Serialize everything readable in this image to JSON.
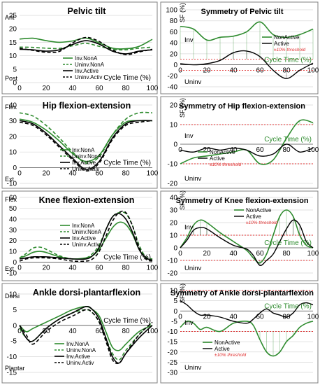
{
  "colors": {
    "green": "#2e8b2e",
    "black": "#000000",
    "red": "#e03030",
    "grid": "#d9d9d9",
    "panel_border": "#7f7f7f",
    "cycle": "#2e8b2e"
  },
  "chart_data": [
    {
      "type": "line",
      "title": "Pelvic tilt",
      "ylim": [
        0,
        25
      ],
      "yticks": [
        0,
        5,
        10,
        15,
        20,
        25
      ],
      "xticks": [
        0,
        20,
        40,
        60,
        80,
        100
      ],
      "xlabel": "Cycle Time (%)",
      "top_label": "Ant",
      "bottom_label": "Post",
      "x": [
        0,
        10,
        20,
        30,
        40,
        50,
        60,
        70,
        80,
        90,
        100
      ],
      "series": [
        {
          "name": "Inv.NonA",
          "values": [
            16.2,
            16.5,
            15.6,
            15.0,
            15.5,
            16.6,
            14.8,
            12.8,
            12.6,
            13.5,
            16.1
          ]
        },
        {
          "name": "Uninv.NonA",
          "values": [
            13.2,
            13.1,
            12.8,
            12.7,
            13.7,
            14.6,
            13.5,
            12.4,
            12.2,
            12.8,
            13.2
          ]
        },
        {
          "name": "Inv.Active",
          "values": [
            12.4,
            12.2,
            11.7,
            12.2,
            14.2,
            15.6,
            14.3,
            11.7,
            10.7,
            11.7,
            12.2
          ]
        },
        {
          "name": "Uninv.Activ",
          "values": [
            12.8,
            12.0,
            11.3,
            11.6,
            14.8,
            16.8,
            15.3,
            12.2,
            10.4,
            11.4,
            12.4
          ]
        }
      ]
    },
    {
      "type": "line",
      "title": "Hip flexion-extension",
      "ylim": [
        -10,
        40
      ],
      "yticks": [
        -10,
        0,
        10,
        20,
        30,
        40
      ],
      "xticks": [
        0,
        20,
        40,
        60,
        80,
        100
      ],
      "xlabel": "Cycle Time (%)",
      "top_label": "Flex",
      "bottom_label": "Ext",
      "x": [
        0,
        10,
        20,
        30,
        40,
        50,
        60,
        70,
        80,
        90,
        100
      ],
      "series": [
        {
          "name": "Inv.NonA",
          "values": [
            31,
            29,
            24,
            17,
            9,
            4,
            8,
            21,
            29,
            30,
            30
          ]
        },
        {
          "name": "Uninv.NonA",
          "values": [
            35,
            33,
            27,
            19,
            10,
            3,
            7,
            21,
            31,
            35,
            35
          ]
        },
        {
          "name": "Inv.Active",
          "values": [
            30,
            28,
            22,
            14,
            6,
            -1,
            4,
            19,
            28,
            30,
            30
          ]
        },
        {
          "name": "Uninv.Activ",
          "values": [
            29,
            27,
            21,
            13,
            5,
            -2,
            3,
            18,
            27,
            29,
            30
          ]
        }
      ]
    },
    {
      "type": "line",
      "title": "Knee flexion-extension",
      "ylim": [
        -10,
        60
      ],
      "yticks": [
        -10,
        0,
        10,
        20,
        30,
        40,
        50,
        60
      ],
      "xticks": [
        0,
        20,
        40,
        60,
        80,
        100
      ],
      "xlabel": "Cycle Time (%)",
      "top_label": "Flex",
      "bottom_label": "Ext",
      "x": [
        0,
        5,
        10,
        15,
        20,
        30,
        40,
        50,
        55,
        60,
        65,
        70,
        75,
        80,
        85,
        90,
        95,
        100
      ],
      "series": [
        {
          "name": "Inv.NonA",
          "values": [
            4,
            6,
            9,
            10,
            9,
            5,
            3,
            4,
            6,
            12,
            22,
            32,
            37,
            35,
            26,
            12,
            4,
            2
          ]
        },
        {
          "name": "Uninv.NonA",
          "values": [
            4,
            8,
            13,
            14,
            12,
            6,
            3,
            4,
            8,
            16,
            30,
            42,
            46,
            45,
            34,
            16,
            5,
            3
          ]
        },
        {
          "name": "Inv.Active",
          "values": [
            3,
            4,
            5,
            5,
            5,
            4,
            3,
            3,
            6,
            14,
            30,
            42,
            45,
            40,
            28,
            12,
            4,
            2
          ]
        },
        {
          "name": "Uninv.Activ",
          "values": [
            1,
            3,
            4,
            4,
            4,
            3,
            1,
            1,
            3,
            10,
            24,
            38,
            46,
            46,
            34,
            14,
            3,
            1
          ]
        }
      ]
    },
    {
      "type": "line",
      "title": "Ankle dorsi-plantarflexion",
      "ylim": [
        -15,
        10
      ],
      "yticks": [
        -15,
        -10,
        -5,
        0,
        5,
        10
      ],
      "xticks": [
        0,
        20,
        40,
        60,
        80,
        100
      ],
      "xlabel": "Cycle Time (%)",
      "top_label": "Dorsi",
      "bottom_label": "Plantar",
      "x": [
        0,
        5,
        10,
        20,
        30,
        40,
        50,
        55,
        60,
        65,
        70,
        75,
        80,
        90,
        100
      ],
      "series": [
        {
          "name": "Inv.NonA",
          "values": [
            0,
            -2,
            -1,
            1,
            3,
            5,
            6,
            5,
            3,
            -2,
            -7,
            -8,
            -6,
            -2,
            0
          ]
        },
        {
          "name": "Uninv.NonA",
          "values": [
            -1,
            -4,
            -5,
            -1,
            2,
            4,
            5,
            4,
            1,
            -4,
            -9,
            -11,
            -8,
            -3,
            1
          ]
        },
        {
          "name": "Inv.Active",
          "values": [
            0,
            -4,
            -5,
            -1,
            2,
            4,
            6,
            5,
            2,
            -4,
            -10,
            -12,
            -9,
            -4,
            0
          ]
        },
        {
          "name": "Uninv.Activ",
          "values": [
            0,
            -3,
            -6,
            -2,
            1,
            3,
            5,
            4,
            1,
            -5,
            -11,
            -12,
            -9,
            -3,
            1
          ]
        }
      ]
    },
    {
      "type": "line",
      "title": "Symmetry of Pelvic tilt",
      "ylim": [
        -40,
        100
      ],
      "yticks": [
        -40,
        -20,
        0,
        20,
        40,
        60,
        80,
        100
      ],
      "xticks": [
        0,
        20,
        40,
        60,
        80,
        100
      ],
      "xlabel": "Cycle Time (%)",
      "ylabel": "SF (%)",
      "top_label": "Inv",
      "bottom_label": "Uninv",
      "threshold": [
        -10,
        10
      ],
      "threshold_label": "±10% threshold",
      "x": [
        0,
        10,
        20,
        30,
        40,
        50,
        60,
        70,
        80,
        90,
        100
      ],
      "series": [
        {
          "name": "NonActive",
          "values": [
            70,
            65,
            45,
            50,
            52,
            60,
            78,
            55,
            50,
            55,
            65
          ]
        },
        {
          "name": "Active",
          "values": [
            2,
            0,
            2,
            8,
            22,
            25,
            15,
            -10,
            -25,
            -10,
            3
          ]
        }
      ]
    },
    {
      "type": "line",
      "title": "Symmetry of Hip flexion-extension",
      "ylim": [
        -20,
        20
      ],
      "yticks": [
        -20,
        -10,
        0,
        10,
        20
      ],
      "xticks": [
        0,
        20,
        40,
        60,
        80,
        100
      ],
      "xlabel": "Cycle Time (%)",
      "ylabel": "SF (%)",
      "top_label": "Inv",
      "bottom_label": "Uninv",
      "threshold": [
        -10,
        10
      ],
      "threshold_label": "±10% threshold",
      "x": [
        0,
        10,
        20,
        30,
        40,
        50,
        60,
        70,
        80,
        90,
        100
      ],
      "series": [
        {
          "name": "NonActive",
          "values": [
            -10,
            -7,
            -6,
            -5,
            -4,
            -3,
            -10,
            -8,
            3,
            12,
            11
          ]
        },
        {
          "name": "Active",
          "values": [
            -3,
            -4,
            -2,
            -3,
            -2,
            -3,
            -6,
            -5,
            0,
            -4,
            -2
          ]
        }
      ]
    },
    {
      "type": "line",
      "title": "Symmetry of Knee flexion-extension",
      "ylim": [
        -20,
        40
      ],
      "yticks": [
        -20,
        -10,
        0,
        10,
        20,
        30,
        40
      ],
      "xticks": [
        0,
        20,
        40,
        60,
        80,
        100
      ],
      "xlabel": "Cycle Time (%)",
      "ylabel": "SF (%)",
      "top_label": "Inv",
      "bottom_label": "Uninv",
      "threshold": [
        -10,
        10
      ],
      "threshold_label": "±10% threshold",
      "x": [
        0,
        5,
        10,
        15,
        20,
        30,
        40,
        50,
        55,
        60,
        65,
        70,
        75,
        80,
        85,
        90,
        95,
        100
      ],
      "series": [
        {
          "name": "NonActive",
          "values": [
            0,
            8,
            18,
            22,
            20,
            12,
            5,
            -2,
            -8,
            -12,
            -5,
            10,
            25,
            30,
            25,
            10,
            2,
            0
          ]
        },
        {
          "name": "Active",
          "values": [
            0,
            6,
            14,
            16,
            15,
            8,
            2,
            -1,
            -6,
            -14,
            -10,
            -5,
            5,
            15,
            22,
            18,
            5,
            0
          ]
        }
      ]
    },
    {
      "type": "line",
      "title": "Symmetry of Ankle dorsi-plantarflexion",
      "ylim": [
        -30,
        10
      ],
      "yticks": [
        -30,
        -25,
        -20,
        -15,
        -10,
        -5,
        0,
        5,
        10
      ],
      "xticks": [
        0,
        20,
        40,
        60,
        80,
        100
      ],
      "xlabel": "Cycle Time (%)",
      "ylabel": "SF (%)",
      "top_label": "Inv",
      "bottom_label": "Uninv",
      "threshold": [
        -10,
        10
      ],
      "threshold_label": "±10% threshold",
      "x": [
        0,
        5,
        10,
        15,
        20,
        30,
        40,
        50,
        55,
        60,
        65,
        70,
        75,
        80,
        85,
        90,
        95,
        100
      ],
      "series": [
        {
          "name": "NonActive",
          "values": [
            -8,
            -5,
            -6,
            -9,
            -8,
            -10,
            -6,
            -5,
            -7,
            -14,
            -20,
            -22,
            -20,
            -15,
            -12,
            -8,
            -6,
            -5
          ]
        },
        {
          "name": "Active",
          "values": [
            5,
            3,
            0,
            -2,
            -2,
            -3,
            -5,
            -6,
            -4,
            -1,
            1,
            -1,
            -2,
            -3,
            -1,
            3,
            4,
            3
          ]
        }
      ]
    }
  ]
}
